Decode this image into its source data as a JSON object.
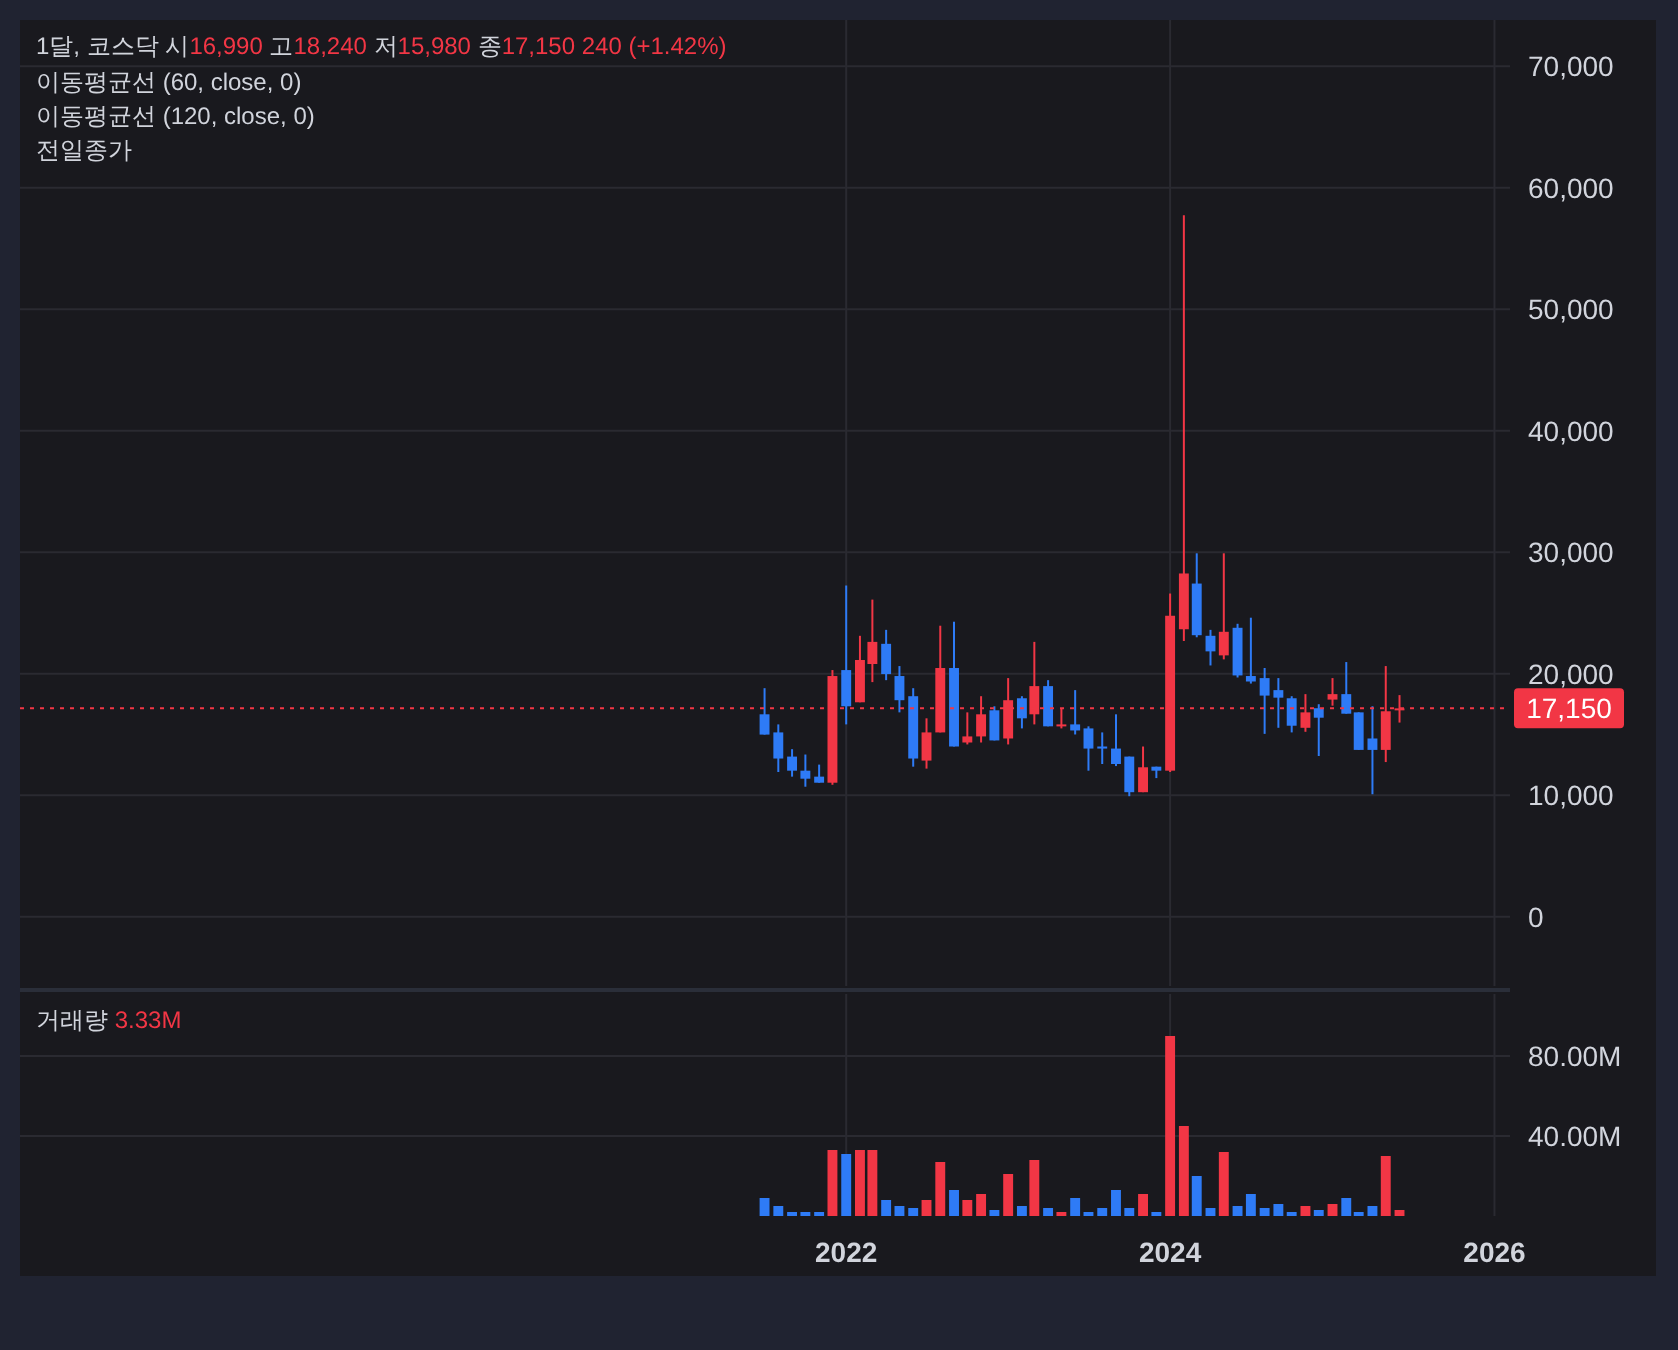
{
  "chart_data": [
    {
      "type": "candlestick",
      "title": "1달, 코스닥 시16,990 고18,240 저15,980 종17,150 240 (+1.42%)",
      "annotations": [
        "이동평균선 (60, close, 0)",
        "이동평균선 (120, close, 0)",
        "전일종가"
      ],
      "x": [
        "2021-07",
        "2021-08",
        "2021-09",
        "2021-10",
        "2021-11",
        "2021-12",
        "2022-01",
        "2022-02",
        "2022-03",
        "2022-04",
        "2022-05",
        "2022-06",
        "2022-07",
        "2022-08",
        "2022-09",
        "2022-10",
        "2022-11",
        "2022-12",
        "2023-01",
        "2023-02",
        "2023-03",
        "2023-04",
        "2023-05",
        "2023-06",
        "2023-07",
        "2023-08",
        "2023-09",
        "2023-10",
        "2023-11",
        "2023-12",
        "2024-01",
        "2024-02",
        "2024-03",
        "2024-04",
        "2024-05",
        "2024-06",
        "2024-07",
        "2024-08",
        "2024-09",
        "2024-10",
        "2024-11",
        "2024-12",
        "2025-01",
        "2025-02",
        "2025-03",
        "2025-04",
        "2025-05",
        "2025-06"
      ],
      "ohlc": [
        [
          16660,
          18810,
          14990,
          14990
        ],
        [
          15170,
          15830,
          11910,
          13020
        ],
        [
          13180,
          13790,
          11530,
          12020
        ],
        [
          12020,
          13350,
          10700,
          11360
        ],
        [
          11530,
          12520,
          11030,
          11030
        ],
        [
          11030,
          20300,
          10860,
          19810
        ],
        [
          20300,
          27260,
          15830,
          17320
        ],
        [
          17650,
          23120,
          17650,
          21130
        ],
        [
          20800,
          26100,
          19310,
          22620
        ],
        [
          22460,
          23610,
          19470,
          19970
        ],
        [
          19810,
          20630,
          16820,
          17820
        ],
        [
          18150,
          18810,
          12350,
          13020
        ],
        [
          12850,
          16330,
          12190,
          15170
        ],
        [
          15170,
          23950,
          15170,
          20470
        ],
        [
          20470,
          24280,
          14010,
          14010
        ],
        [
          14340,
          16820,
          14180,
          14840
        ],
        [
          14840,
          18150,
          14340,
          16660
        ],
        [
          16990,
          17320,
          14510,
          14510
        ],
        [
          14670,
          19640,
          14180,
          17820
        ],
        [
          17980,
          18150,
          15500,
          16330
        ],
        [
          16660,
          22620,
          15830,
          18980
        ],
        [
          18980,
          19470,
          15670,
          15670
        ],
        [
          15670,
          17160,
          15500,
          15830
        ],
        [
          15830,
          18650,
          15000,
          15330
        ],
        [
          15500,
          15670,
          12020,
          13840
        ],
        [
          14010,
          15170,
          12570,
          13840
        ],
        [
          13840,
          16660,
          12400,
          12570
        ],
        [
          13180,
          13180,
          9920,
          10250
        ],
        [
          10250,
          14010,
          10250,
          12300
        ],
        [
          12350,
          12350,
          11410,
          12020
        ],
        [
          12020,
          26600,
          11910,
          24770
        ],
        [
          23660,
          57730,
          22690,
          28250
        ],
        [
          27420,
          29910,
          23000,
          23170
        ],
        [
          23120,
          23610,
          20680,
          21840
        ],
        [
          21510,
          29910,
          21180,
          23450
        ],
        [
          23780,
          24110,
          19690,
          19860
        ],
        [
          19810,
          24610,
          19190,
          19360
        ],
        [
          19640,
          20470,
          15050,
          18200
        ],
        [
          18650,
          19640,
          15550,
          18030
        ],
        [
          17980,
          18150,
          15170,
          15720
        ],
        [
          15550,
          18320,
          15220,
          16820
        ],
        [
          17160,
          17490,
          13230,
          16380
        ],
        [
          17870,
          19640,
          17370,
          18320
        ],
        [
          18320,
          20960,
          16710,
          16710
        ],
        [
          16820,
          16820,
          13730,
          13730
        ],
        [
          14670,
          17320,
          10080,
          13730
        ],
        [
          13730,
          20630,
          12730,
          16910
        ],
        [
          16990,
          18240,
          15980,
          17150
        ]
      ],
      "colors": [
        "#2e7bf6",
        "#2e7bf6",
        "#2e7bf6",
        "#2e7bf6",
        "#2e7bf6",
        "#f23645",
        "#2e7bf6",
        "#f23645",
        "#f23645",
        "#2e7bf6",
        "#2e7bf6",
        "#2e7bf6",
        "#f23645",
        "#f23645",
        "#2e7bf6",
        "#f23645",
        "#f23645",
        "#2e7bf6",
        "#f23645",
        "#2e7bf6",
        "#f23645",
        "#2e7bf6",
        "#f23645",
        "#2e7bf6",
        "#2e7bf6",
        "#2e7bf6",
        "#2e7bf6",
        "#2e7bf6",
        "#f23645",
        "#2e7bf6",
        "#f23645",
        "#f23645",
        "#2e7bf6",
        "#2e7bf6",
        "#f23645",
        "#2e7bf6",
        "#2e7bf6",
        "#2e7bf6",
        "#2e7bf6",
        "#2e7bf6",
        "#f23645",
        "#2e7bf6",
        "#f23645",
        "#2e7bf6",
        "#2e7bf6",
        "#2e7bf6",
        "#f23645",
        "#f23645"
      ],
      "xlim": [
        "2016-11-26",
        "2026-02-05"
      ],
      "xticks": [
        {
          "value": "2022",
          "label": null
        },
        {
          "value": "2024",
          "label": null
        },
        {
          "value": "2026",
          "label": null
        }
      ],
      "ylim": [
        -5700,
        73800
      ],
      "yticks": [
        0,
        {
          "value": 10000,
          "label": "10,000"
        },
        {
          "value": 20000,
          "label": "20,000"
        },
        {
          "value": 30000,
          "label": "30,000"
        },
        {
          "value": 40000,
          "label": "40,000"
        },
        {
          "value": 50000,
          "label": "50,000"
        },
        {
          "value": 60000,
          "label": "60,000"
        },
        {
          "value": 70000,
          "label": "70,000"
        }
      ],
      "ref_lines": [
        {
          "axis": "y",
          "value": 17150,
          "label": "17,150",
          "color": "#f23645",
          "line_style": "dotted"
        }
      ],
      "grid": true,
      "tick_labels": "y"
    },
    {
      "type": "bar",
      "title": "거래량 3.33M",
      "x": [
        "2021-07",
        "2021-08",
        "2021-09",
        "2021-10",
        "2021-11",
        "2021-12",
        "2022-01",
        "2022-02",
        "2022-03",
        "2022-04",
        "2022-05",
        "2022-06",
        "2022-07",
        "2022-08",
        "2022-09",
        "2022-10",
        "2022-11",
        "2022-12",
        "2023-01",
        "2023-02",
        "2023-03",
        "2023-04",
        "2023-05",
        "2023-06",
        "2023-07",
        "2023-08",
        "2023-09",
        "2023-10",
        "2023-11",
        "2023-12",
        "2024-01",
        "2024-02",
        "2024-03",
        "2024-04",
        "2024-05",
        "2024-06",
        "2024-07",
        "2024-08",
        "2024-09",
        "2024-10",
        "2024-11",
        "2024-12",
        "2025-01",
        "2025-02",
        "2025-03",
        "2025-04",
        "2025-05",
        "2025-06"
      ],
      "values": [
        9,
        5,
        2,
        2,
        2,
        33,
        31,
        33,
        33,
        8,
        5,
        4,
        8,
        27,
        13,
        8,
        11,
        3,
        21,
        5,
        28,
        4,
        2,
        9,
        2,
        4,
        13,
        4,
        11,
        2,
        90,
        45,
        20,
        4,
        32,
        5,
        11,
        4,
        6,
        2,
        5,
        3,
        6,
        9,
        2,
        5,
        30,
        3
      ],
      "colors": [
        "#2e7bf6",
        "#2e7bf6",
        "#2e7bf6",
        "#2e7bf6",
        "#2e7bf6",
        "#f23645",
        "#2e7bf6",
        "#f23645",
        "#f23645",
        "#2e7bf6",
        "#2e7bf6",
        "#2e7bf6",
        "#f23645",
        "#f23645",
        "#2e7bf6",
        "#f23645",
        "#f23645",
        "#2e7bf6",
        "#f23645",
        "#2e7bf6",
        "#f23645",
        "#2e7bf6",
        "#f23645",
        "#2e7bf6",
        "#2e7bf6",
        "#2e7bf6",
        "#2e7bf6",
        "#2e7bf6",
        "#f23645",
        "#2e7bf6",
        "#f23645",
        "#f23645",
        "#2e7bf6",
        "#2e7bf6",
        "#f23645",
        "#2e7bf6",
        "#2e7bf6",
        "#2e7bf6",
        "#2e7bf6",
        "#2e7bf6",
        "#f23645",
        "#2e7bf6",
        "#f23645",
        "#2e7bf6",
        "#2e7bf6",
        "#2e7bf6",
        "#f23645",
        "#f23645"
      ],
      "xlim": [
        "2016-11-26",
        "2026-02-05"
      ],
      "xticks": [
        {
          "value": "2022",
          "label": "2022"
        },
        {
          "value": "2024",
          "label": "2024"
        },
        {
          "value": "2026",
          "label": "2026"
        }
      ],
      "ylim": [
        0,
        111
      ],
      "yticks": [
        {
          "value": 40,
          "label": "40.00M"
        },
        {
          "value": 80,
          "label": "80.00M"
        }
      ],
      "grid": true
    }
  ]
}
